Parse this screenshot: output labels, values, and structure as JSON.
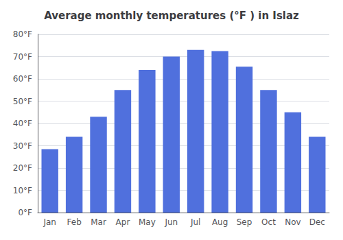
{
  "chart_data": {
    "type": "bar",
    "title": "Average monthly temperatures (°F ) in Islaz",
    "categories": [
      "Jan",
      "Feb",
      "Mar",
      "Apr",
      "May",
      "Jun",
      "Jul",
      "Aug",
      "Sep",
      "Oct",
      "Nov",
      "Dec"
    ],
    "values": [
      28.5,
      34,
      43,
      55,
      64,
      70,
      73,
      72.5,
      65.5,
      55,
      45,
      34
    ],
    "ylim": [
      0,
      80
    ],
    "yticks": [
      {
        "value": 0,
        "label": "0°F"
      },
      {
        "value": 10,
        "label": "10°F"
      },
      {
        "value": 20,
        "label": "20°F"
      },
      {
        "value": 30,
        "label": "30°F"
      },
      {
        "value": 40,
        "label": "40°F"
      },
      {
        "value": 50,
        "label": "50°F"
      },
      {
        "value": 60,
        "label": "60°F"
      },
      {
        "value": 70,
        "label": "70°F"
      },
      {
        "value": 80,
        "label": "80°F"
      }
    ],
    "grid": true
  }
}
